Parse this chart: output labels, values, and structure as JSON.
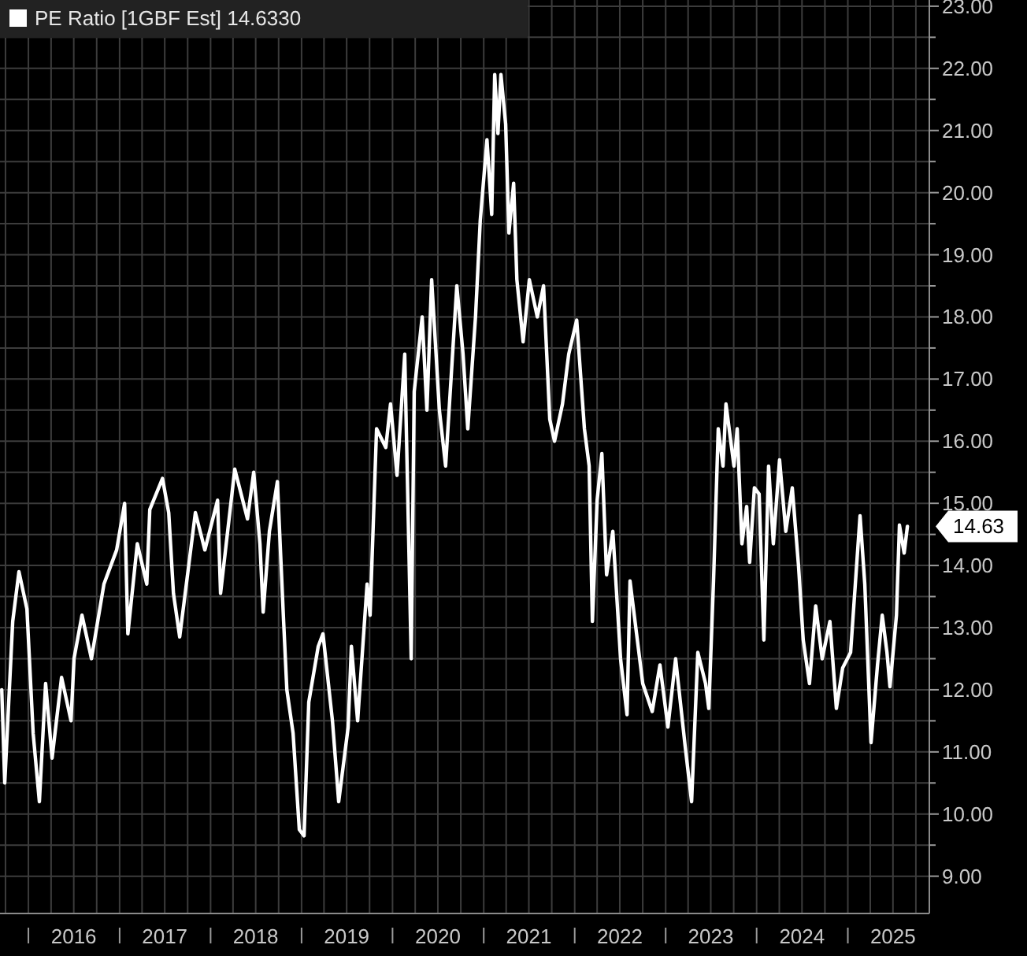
{
  "chart_data": {
    "type": "line",
    "legend": "top left",
    "grid": true,
    "marker": "none",
    "line_style": "solid",
    "xlim": [
      "2015-09-09",
      "2025-11-24"
    ],
    "ylim": [
      8.4,
      23.1
    ],
    "xticks": [
      {
        "value": "2015-10-01",
        "label": null
      },
      {
        "value": "2016-01-01",
        "label": null
      },
      {
        "value": "2016-04-01",
        "label": null
      },
      {
        "value": "2016-07-01",
        "label": "2016"
      },
      {
        "value": "2016-10-01",
        "label": null
      },
      {
        "value": "2017-01-01",
        "label": null
      },
      {
        "value": "2017-04-01",
        "label": null
      },
      {
        "value": "2017-07-01",
        "label": "2017"
      },
      {
        "value": "2017-10-01",
        "label": null
      },
      {
        "value": "2018-01-01",
        "label": null
      },
      {
        "value": "2018-04-01",
        "label": null
      },
      {
        "value": "2018-07-01",
        "label": "2018"
      },
      {
        "value": "2018-10-01",
        "label": null
      },
      {
        "value": "2019-01-01",
        "label": null
      },
      {
        "value": "2019-04-01",
        "label": null
      },
      {
        "value": "2019-07-01",
        "label": "2019"
      },
      {
        "value": "2019-10-01",
        "label": null
      },
      {
        "value": "2020-01-01",
        "label": null
      },
      {
        "value": "2020-04-01",
        "label": null
      },
      {
        "value": "2020-07-01",
        "label": "2020"
      },
      {
        "value": "2020-10-01",
        "label": null
      },
      {
        "value": "2021-01-01",
        "label": null
      },
      {
        "value": "2021-04-01",
        "label": null
      },
      {
        "value": "2021-07-01",
        "label": "2021"
      },
      {
        "value": "2021-10-01",
        "label": null
      },
      {
        "value": "2022-01-01",
        "label": null
      },
      {
        "value": "2022-04-01",
        "label": null
      },
      {
        "value": "2022-07-01",
        "label": "2022"
      },
      {
        "value": "2022-10-01",
        "label": null
      },
      {
        "value": "2023-01-01",
        "label": null
      },
      {
        "value": "2023-04-01",
        "label": null
      },
      {
        "value": "2023-07-01",
        "label": "2023"
      },
      {
        "value": "2023-10-01",
        "label": null
      },
      {
        "value": "2024-01-01",
        "label": null
      },
      {
        "value": "2024-04-01",
        "label": null
      },
      {
        "value": "2024-07-01",
        "label": "2024"
      },
      {
        "value": "2024-10-01",
        "label": null
      },
      {
        "value": "2025-01-01",
        "label": null
      },
      {
        "value": "2025-04-01",
        "label": null
      },
      {
        "value": "2025-07-01",
        "label": "2025"
      },
      {
        "value": "2025-10-01",
        "label": null
      }
    ],
    "yticks": [
      {
        "value": 9,
        "label": "9.00"
      },
      {
        "value": 9.5,
        "label": null
      },
      {
        "value": 10,
        "label": "10.00"
      },
      {
        "value": 10.5,
        "label": null
      },
      {
        "value": 11,
        "label": "11.00"
      },
      {
        "value": 11.5,
        "label": null
      },
      {
        "value": 12,
        "label": "12.00"
      },
      {
        "value": 12.5,
        "label": null
      },
      {
        "value": 13,
        "label": "13.00"
      },
      {
        "value": 13.5,
        "label": null
      },
      {
        "value": 14,
        "label": "14.00"
      },
      {
        "value": 14.5,
        "label": null
      },
      {
        "value": 15,
        "label": "15.00"
      },
      {
        "value": 15.5,
        "label": null
      },
      {
        "value": 16,
        "label": "16.00"
      },
      {
        "value": 16.5,
        "label": null
      },
      {
        "value": 17,
        "label": "17.00"
      },
      {
        "value": 17.5,
        "label": null
      },
      {
        "value": 18,
        "label": "18.00"
      },
      {
        "value": 18.5,
        "label": null
      },
      {
        "value": 19,
        "label": "19.00"
      },
      {
        "value": 19.5,
        "label": null
      },
      {
        "value": 20,
        "label": "20.00"
      },
      {
        "value": 20.5,
        "label": null
      },
      {
        "value": 21,
        "label": "21.00"
      },
      {
        "value": 21.5,
        "label": null
      },
      {
        "value": 22,
        "label": "22.00"
      },
      {
        "value": 22.5,
        "label": null
      },
      {
        "value": 23,
        "label": "23.00"
      }
    ],
    "annotations": [
      {
        "text": "14.63",
        "x": "2025-08-28",
        "y": 14.63
      }
    ],
    "series": [
      {
        "name": "PE Ratio [1GBF Est] 14.6330",
        "color": "#ffffff",
        "x": [
          "2015-09-16",
          "2015-09-28",
          "2015-10-30",
          "2015-11-24",
          "2015-12-26",
          "2016-01-20",
          "2016-02-14",
          "2016-03-10",
          "2016-04-05",
          "2016-05-13",
          "2016-06-20",
          "2016-07-02",
          "2016-08-03",
          "2016-09-10",
          "2016-10-30",
          "2016-12-20",
          "2017-01-21",
          "2017-02-03",
          "2017-03-13",
          "2017-04-20",
          "2017-05-02",
          "2017-06-22",
          "2017-07-17",
          "2017-08-05",
          "2017-08-30",
          "2017-11-01",
          "2017-12-09",
          "2018-01-29",
          "2018-02-10",
          "2018-04-08",
          "2018-05-29",
          "2018-06-23",
          "2018-07-18",
          "2018-07-31",
          "2018-08-25",
          "2018-09-26",
          "2018-10-21",
          "2018-11-03",
          "2018-11-28",
          "2018-12-23",
          "2019-01-11",
          "2019-01-30",
          "2019-03-09",
          "2019-03-28",
          "2019-05-05",
          "2019-05-30",
          "2019-07-07",
          "2019-07-20",
          "2019-08-14",
          "2019-09-21",
          "2019-10-03",
          "2019-10-29",
          "2019-12-05",
          "2019-12-24",
          "2020-01-19",
          "2020-02-19",
          "2020-03-16",
          "2020-03-28",
          "2020-04-29",
          "2020-05-18",
          "2020-06-06",
          "2020-07-07",
          "2020-08-01",
          "2020-09-15",
          "2020-10-10",
          "2020-10-29",
          "2020-11-29",
          "2020-12-18",
          "2021-01-14",
          "2021-02-02",
          "2021-02-14",
          "2021-02-27",
          "2021-03-11",
          "2021-03-30",
          "2021-04-12",
          "2021-05-01",
          "2021-05-14",
          "2021-06-08",
          "2021-07-03",
          "2021-08-04",
          "2021-08-29",
          "2021-09-23",
          "2021-10-12",
          "2021-11-13",
          "2021-12-08",
          "2022-01-09",
          "2022-02-09",
          "2022-02-28",
          "2022-03-13",
          "2022-04-01",
          "2022-04-20",
          "2022-05-09",
          "2022-06-03",
          "2022-07-04",
          "2022-07-30",
          "2022-08-11",
          "2022-10-01",
          "2022-11-08",
          "2022-12-09",
          "2023-01-10",
          "2023-02-10",
          "2023-03-20",
          "2023-04-15",
          "2023-05-10",
          "2023-06-10",
          "2023-06-23",
          "2023-07-12",
          "2023-07-31",
          "2023-08-19",
          "2023-08-31",
          "2023-10-02",
          "2023-10-15",
          "2023-11-03",
          "2023-11-22",
          "2023-12-04",
          "2023-12-23",
          "2024-01-11",
          "2024-01-30",
          "2024-02-18",
          "2024-03-08",
          "2024-04-02",
          "2024-04-27",
          "2024-05-23",
          "2024-06-17",
          "2024-07-06",
          "2024-07-31",
          "2024-08-25",
          "2024-09-20",
          "2024-10-21",
          "2024-11-16",
          "2024-12-11",
          "2025-01-12",
          "2025-01-31",
          "2025-02-19",
          "2025-03-10",
          "2025-04-04",
          "2025-04-30",
          "2025-05-19",
          "2025-06-07",
          "2025-06-19",
          "2025-07-15",
          "2025-07-27",
          "2025-08-15",
          "2025-08-28"
        ],
        "values": [
          12.0,
          10.5,
          13.1,
          13.9,
          13.3,
          11.3,
          10.2,
          12.1,
          10.9,
          12.2,
          11.5,
          12.5,
          13.2,
          12.5,
          13.7,
          14.25,
          15.0,
          12.9,
          14.35,
          13.7,
          14.9,
          15.4,
          14.85,
          13.55,
          12.85,
          14.85,
          14.25,
          15.05,
          13.55,
          15.55,
          14.75,
          15.5,
          14.35,
          13.25,
          14.55,
          15.35,
          13.1,
          12.0,
          11.3,
          9.75,
          9.65,
          11.8,
          12.7,
          12.9,
          11.5,
          10.2,
          11.4,
          12.7,
          11.5,
          13.7,
          13.2,
          16.2,
          15.9,
          16.6,
          15.45,
          17.4,
          12.5,
          16.8,
          18.0,
          16.5,
          18.6,
          16.5,
          15.6,
          18.5,
          17.4,
          16.2,
          18.0,
          19.55,
          20.85,
          19.65,
          21.9,
          20.95,
          21.9,
          21.1,
          19.35,
          20.15,
          18.6,
          17.6,
          18.6,
          18.0,
          18.5,
          16.35,
          16.0,
          16.6,
          17.4,
          17.95,
          16.2,
          15.6,
          13.1,
          15.05,
          15.8,
          13.85,
          14.55,
          12.5,
          11.6,
          13.75,
          12.1,
          11.65,
          12.4,
          11.4,
          12.5,
          11.1,
          10.2,
          12.6,
          12.1,
          11.7,
          13.75,
          16.2,
          15.6,
          16.6,
          15.6,
          16.2,
          14.35,
          14.95,
          14.05,
          15.25,
          15.15,
          12.8,
          15.6,
          14.35,
          15.7,
          14.55,
          15.25,
          14.0,
          12.8,
          12.1,
          13.35,
          12.5,
          13.1,
          11.7,
          12.35,
          12.6,
          13.7,
          14.8,
          13.7,
          11.15,
          12.4,
          13.2,
          12.6,
          12.05,
          13.2,
          14.65,
          14.2,
          14.63
        ]
      }
    ]
  }
}
